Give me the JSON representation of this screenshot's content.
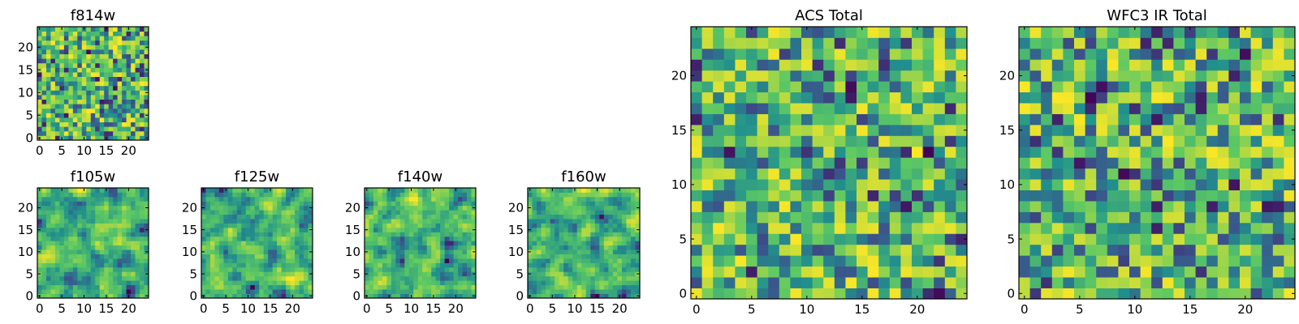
{
  "figure": {
    "colormap": "viridis",
    "colors": {
      "background": "#ffffff",
      "axis": "#000000",
      "viridis_stops": [
        "#440154",
        "#3b528b",
        "#21908d",
        "#5dc963",
        "#fde725"
      ]
    },
    "noise_seed_note": ""
  },
  "chart_data": [
    {
      "type": "heatmap",
      "title": "f814w",
      "grid_size": 25,
      "xticks": [
        0,
        5,
        10,
        15,
        20
      ],
      "yticks": [
        0,
        5,
        10,
        15,
        20
      ],
      "xlim": [
        0,
        24
      ],
      "ylim": [
        0,
        24
      ],
      "value_range": [
        0,
        1
      ],
      "smoothness": 0
    },
    {
      "type": "heatmap",
      "title": "f105w",
      "grid_size": 25,
      "xticks": [
        0,
        5,
        10,
        15,
        20
      ],
      "yticks": [
        0,
        5,
        10,
        15,
        20
      ],
      "xlim": [
        0,
        24
      ],
      "ylim": [
        0,
        24
      ],
      "value_range": [
        0,
        1
      ],
      "smoothness": 1
    },
    {
      "type": "heatmap",
      "title": "f125w",
      "grid_size": 25,
      "xticks": [
        0,
        5,
        10,
        15,
        20
      ],
      "yticks": [
        0,
        5,
        10,
        15,
        20
      ],
      "xlim": [
        0,
        24
      ],
      "ylim": [
        0,
        24
      ],
      "value_range": [
        0,
        1
      ],
      "smoothness": 1
    },
    {
      "type": "heatmap",
      "title": "f140w",
      "grid_size": 25,
      "xticks": [
        0,
        5,
        10,
        15,
        20
      ],
      "yticks": [
        0,
        5,
        10,
        15,
        20
      ],
      "xlim": [
        0,
        24
      ],
      "ylim": [
        0,
        24
      ],
      "value_range": [
        0,
        1
      ],
      "smoothness": 1
    },
    {
      "type": "heatmap",
      "title": "f160w",
      "grid_size": 25,
      "xticks": [
        0,
        5,
        10,
        15,
        20
      ],
      "yticks": [
        0,
        5,
        10,
        15,
        20
      ],
      "xlim": [
        0,
        24
      ],
      "ylim": [
        0,
        24
      ],
      "value_range": [
        0,
        1
      ],
      "smoothness": 1
    },
    {
      "type": "heatmap",
      "title": "ACS Total",
      "grid_size": 25,
      "xticks": [
        0,
        5,
        10,
        15,
        20
      ],
      "yticks": [
        0,
        5,
        10,
        15,
        20
      ],
      "xlim": [
        0,
        24
      ],
      "ylim": [
        0,
        24
      ],
      "value_range": [
        0,
        1
      ],
      "smoothness": 0
    },
    {
      "type": "heatmap",
      "title": "WFC3 IR Total",
      "grid_size": 25,
      "xticks": [
        0,
        5,
        10,
        15,
        20
      ],
      "yticks": [
        0,
        5,
        10,
        15,
        20
      ],
      "xlim": [
        0,
        24
      ],
      "ylim": [
        0,
        24
      ],
      "value_range": [
        0,
        1
      ],
      "smoothness": 0
    }
  ]
}
